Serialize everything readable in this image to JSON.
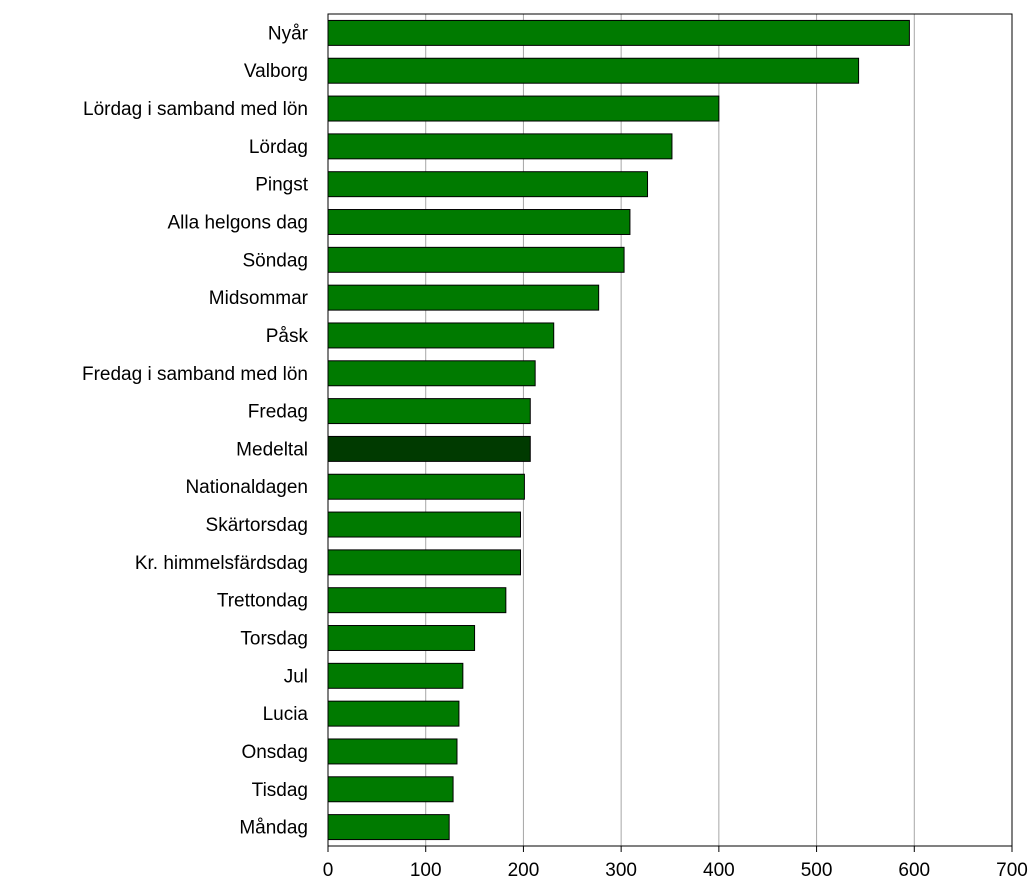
{
  "chart_data": {
    "type": "bar",
    "orientation": "horizontal",
    "title": "",
    "xlabel": "",
    "ylabel": "",
    "xlim": [
      0,
      700
    ],
    "x_ticks": [
      0,
      100,
      200,
      300,
      400,
      500,
      600,
      700
    ],
    "grid": "vertical gridlines",
    "legend": "none",
    "bar_color": "#007a00",
    "highlight_color": "#003a00",
    "highlight_category": "Medeltal",
    "categories": [
      "Nyår",
      "Valborg",
      "Lördag i samband med lön",
      "Lördag",
      "Pingst",
      "Alla helgons dag",
      "Söndag",
      "Midsommar",
      "Påsk",
      "Fredag i samband med lön",
      "Fredag",
      "Medeltal",
      "Nationaldagen",
      "Skärtorsdag",
      "Kr. himmelsfärdsdag",
      "Trettondag",
      "Torsdag",
      "Jul",
      "Lucia",
      "Onsdag",
      "Tisdag",
      "Måndag"
    ],
    "values": [
      595,
      543,
      400,
      352,
      327,
      309,
      303,
      277,
      231,
      212,
      207,
      207,
      201,
      197,
      197,
      182,
      150,
      138,
      134,
      132,
      128,
      124
    ]
  }
}
